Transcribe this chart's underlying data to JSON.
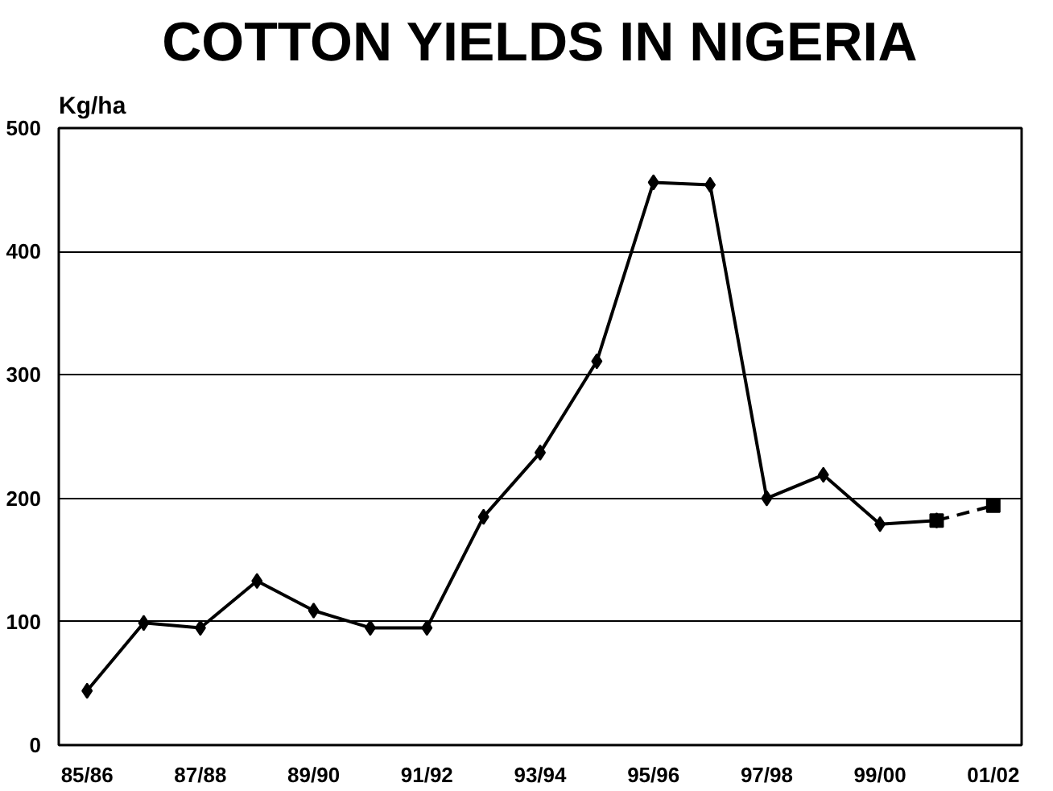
{
  "chart_data": {
    "type": "line",
    "title": "COTTON YIELDS IN NIGERIA",
    "ylabel": "Kg/ha",
    "categories": [
      "85/86",
      null,
      "87/88",
      null,
      "89/90",
      null,
      "91/92",
      null,
      "93/94",
      null,
      "95/96",
      null,
      "97/98",
      null,
      "99/00",
      null,
      "01/02"
    ],
    "series": [
      {
        "color": "#000000",
        "marker": "diamond",
        "line_style": "solid",
        "values": [
          44,
          99,
          95,
          133,
          109,
          95,
          95,
          185,
          237,
          311,
          456,
          454,
          200,
          219,
          179,
          182,
          null
        ]
      },
      {
        "color": "#000000",
        "marker": "square",
        "line_style": "dashed",
        "values": [
          null,
          null,
          null,
          null,
          null,
          null,
          null,
          null,
          null,
          null,
          null,
          null,
          null,
          null,
          null,
          182,
          194
        ]
      }
    ],
    "ylim": [
      0,
      500
    ],
    "yticks": [
      0,
      100,
      200,
      300,
      400,
      500
    ],
    "grid": "y"
  }
}
